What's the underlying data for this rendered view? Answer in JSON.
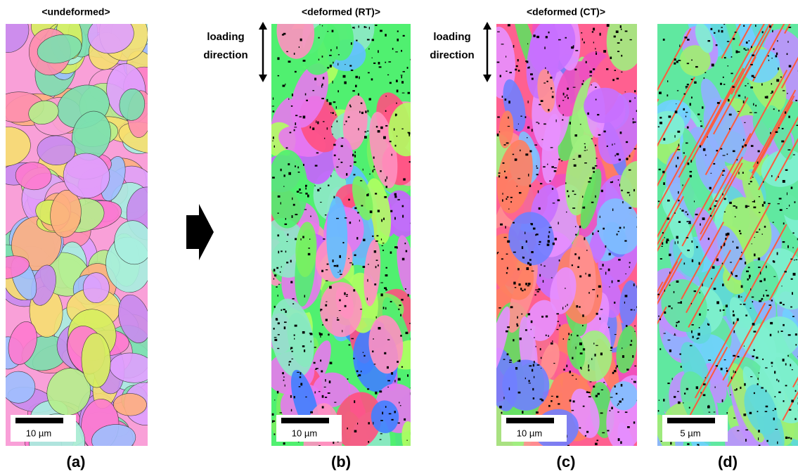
{
  "panels": [
    {
      "title": "<undeformed>",
      "scale_label": "10 µm",
      "caption": "(a)"
    },
    {
      "title": "<deformed (RT)>",
      "annotation": [
        "loading",
        "direction"
      ],
      "scale_label": "10 µm",
      "caption": "(b)"
    },
    {
      "title": "<deformed (CT)>",
      "annotation": [
        "loading",
        "direction"
      ],
      "scale_label": "10 µm",
      "caption": "(c)"
    },
    {
      "scale_label": "5 µm",
      "caption": "(d)"
    }
  ]
}
